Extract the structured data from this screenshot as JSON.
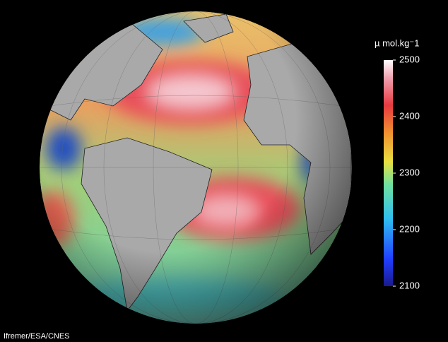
{
  "colorbar": {
    "title": "µ mol.kg⁻1",
    "range": [
      2100,
      2500
    ],
    "ticks": [
      2500,
      2400,
      2300,
      2200,
      2100
    ]
  },
  "credit": "Ifremer/ESA/CNES"
}
